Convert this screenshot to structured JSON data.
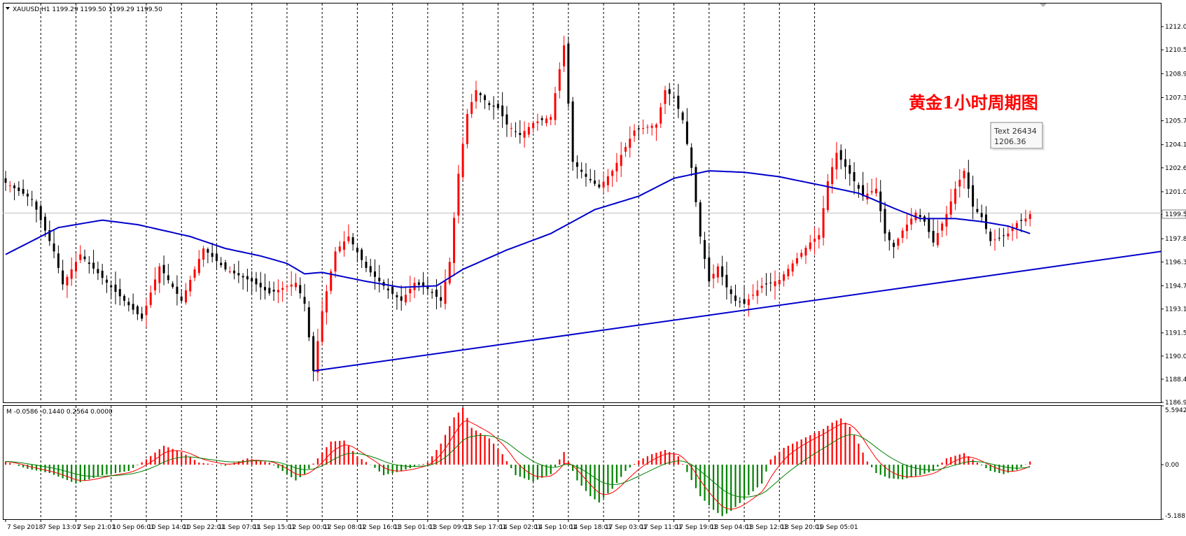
{
  "header": {
    "symbol_text": "XAUUSD,H1  1199.29 1199.50 1199.29 1199.50",
    "osc_text": "M -0.0586 -0.1440 0.2564 0.0000"
  },
  "annotation": {
    "title": "黄金1小时周期图",
    "tooltip_line1": "Text 26434",
    "tooltip_line2": "1206.36"
  },
  "chart_data": [
    {
      "type": "candlestick",
      "symbol": "XAUUSD",
      "timeframe": "H1",
      "ylim": [
        1186.9,
        1213.6
      ],
      "y_ticks": [
        "1212.05",
        "1210.50",
        "1208.90",
        "1207.30",
        "1205.75",
        "1204.15",
        "1202.60",
        "1201.00",
        "1199.50",
        "1197.85",
        "1196.30",
        "1194.70",
        "1193.15",
        "1191.55",
        "1190.00",
        "1188.45",
        "1186.90"
      ],
      "current_price": "1199.50",
      "x_labels": [
        "7 Sep 2018",
        "7 Sep 13:01",
        "7 Sep 21:01",
        "10 Sep 06:01",
        "10 Sep 14:01",
        "10 Sep 22:01",
        "11 Sep 07:01",
        "11 Sep 15:01",
        "12 Sep 00:01",
        "12 Sep 08:01",
        "12 Sep 16:01",
        "13 Sep 01:01",
        "13 Sep 09:01",
        "13 Sep 17:01",
        "14 Sep 02:01",
        "14 Sep 10:01",
        "14 Sep 18:01",
        "17 Sep 03:01",
        "17 Sep 11:01",
        "17 Sep 19:01",
        "18 Sep 04:01",
        "18 Sep 12:01",
        "18 Sep 20:01",
        "19 Sep 05:01"
      ],
      "up_color": "#ff0000",
      "down_color": "#000000",
      "ma_color": "#0000cc",
      "trendline": {
        "start_price": 1189.0,
        "end_price": 1197.0
      },
      "anchors": [
        {
          "b": 0,
          "p": 1201.6
        },
        {
          "b": 6,
          "p": 1200.5
        },
        {
          "b": 11,
          "p": 1197.0
        },
        {
          "b": 13,
          "p": 1194.8
        },
        {
          "b": 17,
          "p": 1196.8
        },
        {
          "b": 24,
          "p": 1194.6
        },
        {
          "b": 31,
          "p": 1192.5
        },
        {
          "b": 35,
          "p": 1196.0
        },
        {
          "b": 40,
          "p": 1193.7
        },
        {
          "b": 45,
          "p": 1197.2
        },
        {
          "b": 50,
          "p": 1195.8
        },
        {
          "b": 56,
          "p": 1195.0
        },
        {
          "b": 60,
          "p": 1194.2
        },
        {
          "b": 66,
          "p": 1194.9
        },
        {
          "b": 68,
          "p": 1193.5
        },
        {
          "b": 70,
          "p": 1189.0
        },
        {
          "b": 72,
          "p": 1193.0
        },
        {
          "b": 75,
          "p": 1197.0
        },
        {
          "b": 78,
          "p": 1198.0
        },
        {
          "b": 82,
          "p": 1195.9
        },
        {
          "b": 87,
          "p": 1194.4
        },
        {
          "b": 90,
          "p": 1193.7
        },
        {
          "b": 93,
          "p": 1194.9
        },
        {
          "b": 96,
          "p": 1194.5
        },
        {
          "b": 99,
          "p": 1193.7
        },
        {
          "b": 101,
          "p": 1196.3
        },
        {
          "b": 103,
          "p": 1202.2
        },
        {
          "b": 105,
          "p": 1206.2
        },
        {
          "b": 107,
          "p": 1207.8
        },
        {
          "b": 110,
          "p": 1206.8
        },
        {
          "b": 112,
          "p": 1206.6
        },
        {
          "b": 114,
          "p": 1205.5
        },
        {
          "b": 117,
          "p": 1204.8
        },
        {
          "b": 120,
          "p": 1205.6
        },
        {
          "b": 124,
          "p": 1206.0
        },
        {
          "b": 127,
          "p": 1210.8
        },
        {
          "b": 129,
          "p": 1203.0
        },
        {
          "b": 132,
          "p": 1202.0
        },
        {
          "b": 135,
          "p": 1201.3
        },
        {
          "b": 138,
          "p": 1202.4
        },
        {
          "b": 141,
          "p": 1204.0
        },
        {
          "b": 143,
          "p": 1205.1
        },
        {
          "b": 148,
          "p": 1205.5
        },
        {
          "b": 150,
          "p": 1207.8
        },
        {
          "b": 152,
          "p": 1207.3
        },
        {
          "b": 154,
          "p": 1205.8
        },
        {
          "b": 156,
          "p": 1202.6
        },
        {
          "b": 158,
          "p": 1198.0
        },
        {
          "b": 160,
          "p": 1195.0
        },
        {
          "b": 162,
          "p": 1196.0
        },
        {
          "b": 164,
          "p": 1194.6
        },
        {
          "b": 166,
          "p": 1193.7
        },
        {
          "b": 168,
          "p": 1193.5
        },
        {
          "b": 172,
          "p": 1194.7
        },
        {
          "b": 176,
          "p": 1195.1
        },
        {
          "b": 179,
          "p": 1196.2
        },
        {
          "b": 183,
          "p": 1197.6
        },
        {
          "b": 185,
          "p": 1198.1
        },
        {
          "b": 187,
          "p": 1201.7
        },
        {
          "b": 189,
          "p": 1203.6
        },
        {
          "b": 192,
          "p": 1202.2
        },
        {
          "b": 195,
          "p": 1200.7
        },
        {
          "b": 198,
          "p": 1201.2
        },
        {
          "b": 200,
          "p": 1198.2
        },
        {
          "b": 202,
          "p": 1197.3
        },
        {
          "b": 204,
          "p": 1198.4
        },
        {
          "b": 207,
          "p": 1199.6
        },
        {
          "b": 209,
          "p": 1199.0
        },
        {
          "b": 211,
          "p": 1197.6
        },
        {
          "b": 214,
          "p": 1199.5
        },
        {
          "b": 216,
          "p": 1201.2
        },
        {
          "b": 218,
          "p": 1202.4
        },
        {
          "b": 220,
          "p": 1200.0
        },
        {
          "b": 222,
          "p": 1199.3
        },
        {
          "b": 224,
          "p": 1197.7
        },
        {
          "b": 226,
          "p": 1197.9
        },
        {
          "b": 228,
          "p": 1198.2
        },
        {
          "b": 230,
          "p": 1198.9
        },
        {
          "b": 232,
          "p": 1199.2
        },
        {
          "b": 233,
          "p": 1199.5
        }
      ],
      "ma_anchors": [
        {
          "b": 0,
          "p": 1196.8
        },
        {
          "b": 12,
          "p": 1198.6
        },
        {
          "b": 22,
          "p": 1199.1
        },
        {
          "b": 30,
          "p": 1198.8
        },
        {
          "b": 42,
          "p": 1198.0
        },
        {
          "b": 50,
          "p": 1197.2
        },
        {
          "b": 58,
          "p": 1196.7
        },
        {
          "b": 64,
          "p": 1196.2
        },
        {
          "b": 68,
          "p": 1195.5
        },
        {
          "b": 72,
          "p": 1195.6
        },
        {
          "b": 82,
          "p": 1195.0
        },
        {
          "b": 90,
          "p": 1194.6
        },
        {
          "b": 98,
          "p": 1194.7
        },
        {
          "b": 104,
          "p": 1195.8
        },
        {
          "b": 114,
          "p": 1197.1
        },
        {
          "b": 124,
          "p": 1198.2
        },
        {
          "b": 134,
          "p": 1199.8
        },
        {
          "b": 144,
          "p": 1200.7
        },
        {
          "b": 152,
          "p": 1201.9
        },
        {
          "b": 160,
          "p": 1202.4
        },
        {
          "b": 168,
          "p": 1202.3
        },
        {
          "b": 176,
          "p": 1202.0
        },
        {
          "b": 186,
          "p": 1201.4
        },
        {
          "b": 194,
          "p": 1200.9
        },
        {
          "b": 202,
          "p": 1199.9
        },
        {
          "b": 208,
          "p": 1199.2
        },
        {
          "b": 216,
          "p": 1199.2
        },
        {
          "b": 222,
          "p": 1199.0
        },
        {
          "b": 228,
          "p": 1198.7
        },
        {
          "b": 233,
          "p": 1198.2
        }
      ]
    },
    {
      "type": "histogram",
      "indicator": "M",
      "ylim": [
        -5.188,
        5.5942
      ],
      "y_ticks": [
        "5.5942",
        "0.00",
        "-5.188"
      ],
      "hist_up_color": "#ff0000",
      "hist_down_color": "#008000",
      "signal_colors": [
        "#ff0000",
        "#008000"
      ],
      "anchors": [
        {
          "b": 0,
          "v": 0.3
        },
        {
          "b": 5,
          "v": -0.4
        },
        {
          "b": 10,
          "v": -0.8
        },
        {
          "b": 16,
          "v": -1.8
        },
        {
          "b": 22,
          "v": -1.0
        },
        {
          "b": 28,
          "v": -0.6
        },
        {
          "b": 32,
          "v": 0.5
        },
        {
          "b": 36,
          "v": 1.8
        },
        {
          "b": 40,
          "v": 1.2
        },
        {
          "b": 44,
          "v": 0.2
        },
        {
          "b": 50,
          "v": -0.1
        },
        {
          "b": 55,
          "v": 0.6
        },
        {
          "b": 60,
          "v": 0.2
        },
        {
          "b": 63,
          "v": -0.6
        },
        {
          "b": 66,
          "v": -1.5
        },
        {
          "b": 68,
          "v": -0.9
        },
        {
          "b": 71,
          "v": 0.6
        },
        {
          "b": 74,
          "v": 2.2
        },
        {
          "b": 77,
          "v": 2.3
        },
        {
          "b": 80,
          "v": 0.8
        },
        {
          "b": 84,
          "v": -0.3
        },
        {
          "b": 86,
          "v": -1.0
        },
        {
          "b": 90,
          "v": -0.6
        },
        {
          "b": 96,
          "v": 0.2
        },
        {
          "b": 99,
          "v": 2.0
        },
        {
          "b": 102,
          "v": 4.5
        },
        {
          "b": 104,
          "v": 5.4
        },
        {
          "b": 106,
          "v": 3.5
        },
        {
          "b": 110,
          "v": 2.5
        },
        {
          "b": 113,
          "v": 1.0
        },
        {
          "b": 116,
          "v": -1.0
        },
        {
          "b": 120,
          "v": -1.6
        },
        {
          "b": 124,
          "v": -0.9
        },
        {
          "b": 127,
          "v": 1.2
        },
        {
          "b": 130,
          "v": -1.5
        },
        {
          "b": 133,
          "v": -3.0
        },
        {
          "b": 135,
          "v": -3.6
        },
        {
          "b": 138,
          "v": -2.3
        },
        {
          "b": 141,
          "v": -0.6
        },
        {
          "b": 144,
          "v": 0.4
        },
        {
          "b": 147,
          "v": 1.0
        },
        {
          "b": 150,
          "v": 1.4
        },
        {
          "b": 153,
          "v": 0.8
        },
        {
          "b": 155,
          "v": -0.7
        },
        {
          "b": 158,
          "v": -3.0
        },
        {
          "b": 161,
          "v": -4.3
        },
        {
          "b": 163,
          "v": -4.9
        },
        {
          "b": 165,
          "v": -4.4
        },
        {
          "b": 169,
          "v": -2.9
        },
        {
          "b": 172,
          "v": -1.8
        },
        {
          "b": 174,
          "v": 0.5
        },
        {
          "b": 177,
          "v": 1.6
        },
        {
          "b": 180,
          "v": 2.2
        },
        {
          "b": 183,
          "v": 2.8
        },
        {
          "b": 186,
          "v": 3.4
        },
        {
          "b": 188,
          "v": 4.0
        },
        {
          "b": 190,
          "v": 4.4
        },
        {
          "b": 192,
          "v": 3.6
        },
        {
          "b": 194,
          "v": 2.0
        },
        {
          "b": 196,
          "v": 0.3
        },
        {
          "b": 198,
          "v": -0.8
        },
        {
          "b": 201,
          "v": -1.3
        },
        {
          "b": 204,
          "v": -1.4
        },
        {
          "b": 208,
          "v": -1.0
        },
        {
          "b": 211,
          "v": -0.6
        },
        {
          "b": 214,
          "v": 0.6
        },
        {
          "b": 218,
          "v": 1.1
        },
        {
          "b": 221,
          "v": 0.2
        },
        {
          "b": 224,
          "v": -0.6
        },
        {
          "b": 227,
          "v": -0.9
        },
        {
          "b": 230,
          "v": -0.5
        },
        {
          "b": 233,
          "v": 0.3
        }
      ]
    }
  ]
}
